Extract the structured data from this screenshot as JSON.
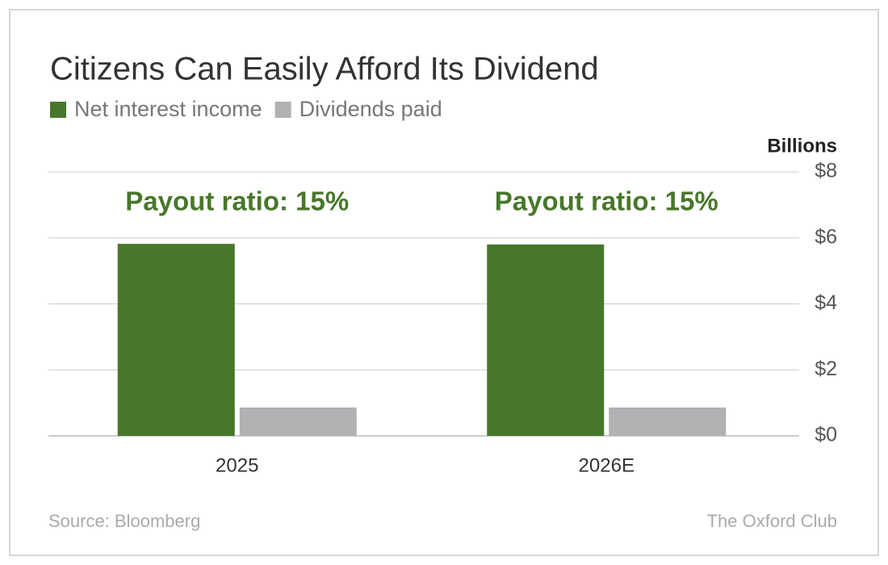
{
  "chart_data": {
    "type": "bar",
    "title": "Citizens Can Easily Afford Its Dividend",
    "y_axis_label": "Billions",
    "categories": [
      "2025",
      "2026E"
    ],
    "series": [
      {
        "name": "Net interest income",
        "color": "#47772a",
        "values": [
          5.82,
          5.8
        ]
      },
      {
        "name": "Dividends paid",
        "color": "#b1b0b3",
        "values": [
          0.86,
          0.86
        ]
      }
    ],
    "annotations": [
      "Payout ratio: 15%",
      "Payout ratio: 15%"
    ],
    "ylim": [
      0,
      8
    ],
    "yticks": [
      {
        "value": 0,
        "label": "$0"
      },
      {
        "value": 2,
        "label": "$2"
      },
      {
        "value": 4,
        "label": "$4"
      },
      {
        "value": 6,
        "label": "$6"
      },
      {
        "value": 8,
        "label": "$8"
      }
    ],
    "grid": true,
    "source": "Source: Bloomberg",
    "brand": "The Oxford Club"
  }
}
